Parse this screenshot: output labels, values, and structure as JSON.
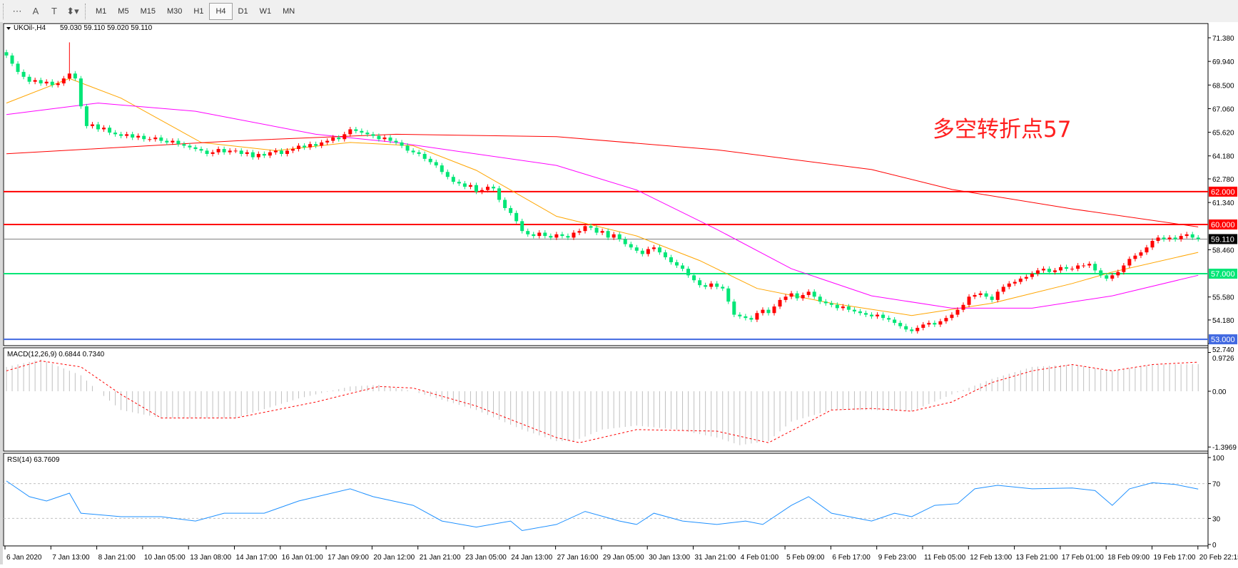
{
  "toolbar": {
    "tools": [
      {
        "name": "period-separator-icon",
        "glyph": "⋯"
      },
      {
        "name": "text-label-icon",
        "glyph": "A"
      },
      {
        "name": "text-box-icon",
        "glyph": "T"
      },
      {
        "name": "arrows-icon",
        "glyph": "⬍▾"
      }
    ],
    "timeframes": [
      "M1",
      "M5",
      "M15",
      "M30",
      "H1",
      "H4",
      "D1",
      "W1",
      "MN"
    ],
    "active_timeframe": "H4"
  },
  "main_pane": {
    "title": "UKOil-,H4",
    "ohlc": "59.030 59.110 59.020 59.110",
    "annotation": "多空转折点57",
    "price_ticks": [
      "71.380",
      "69.940",
      "68.500",
      "67.060",
      "65.620",
      "64.180",
      "62.780",
      "61.340",
      "58.460",
      "55.580",
      "54.180",
      "52.740"
    ],
    "hlines": [
      {
        "price": 62.0,
        "label": "62.000",
        "color": "#ff0000"
      },
      {
        "price": 60.0,
        "label": "60.000",
        "color": "#ff0000"
      },
      {
        "price": 59.11,
        "label": "59.110",
        "color": "#808080",
        "label_bg": "#000000"
      },
      {
        "price": 57.0,
        "label": "57.000",
        "color": "#00e676"
      },
      {
        "price": 53.0,
        "label": "53.000",
        "color": "#4169e1"
      }
    ]
  },
  "chart_data": [
    {
      "type": "candlestick",
      "symbol": "UKOil-",
      "timeframe": "H4",
      "ylim": [
        52.74,
        72.2
      ],
      "up_color": "#ff0000",
      "down_color": "#00e676",
      "closes": [
        70.3,
        69.8,
        69.3,
        69.0,
        68.7,
        68.8,
        68.6,
        68.7,
        68.5,
        68.6,
        68.9,
        69.2,
        68.9,
        67.2,
        66.0,
        66.1,
        65.8,
        65.9,
        65.6,
        65.5,
        65.4,
        65.5,
        65.3,
        65.4,
        65.2,
        65.2,
        65.3,
        65.1,
        65.0,
        65.1,
        64.9,
        64.8,
        64.7,
        64.6,
        64.5,
        64.3,
        64.4,
        64.6,
        64.4,
        64.5,
        64.5,
        64.3,
        64.4,
        64.1,
        64.3,
        64.2,
        64.4,
        64.5,
        64.3,
        64.5,
        64.6,
        64.8,
        64.7,
        64.9,
        64.8,
        65.0,
        65.1,
        65.3,
        65.2,
        65.5,
        65.8,
        65.7,
        65.6,
        65.5,
        65.4,
        65.2,
        65.3,
        65.1,
        65.0,
        64.8,
        64.5,
        64.4,
        64.3,
        64.0,
        63.8,
        63.6,
        63.2,
        62.9,
        62.6,
        62.5,
        62.3,
        62.4,
        62.0,
        62.1,
        62.3,
        62.2,
        61.5,
        61.0,
        60.7,
        60.2,
        59.6,
        59.4,
        59.3,
        59.5,
        59.3,
        59.2,
        59.4,
        59.3,
        59.2,
        59.5,
        59.6,
        59.9,
        59.8,
        59.5,
        59.6,
        59.2,
        59.4,
        59.1,
        58.8,
        58.6,
        58.4,
        58.2,
        58.5,
        58.6,
        58.3,
        58.0,
        57.7,
        57.5,
        57.3,
        56.9,
        56.6,
        56.3,
        56.2,
        56.4,
        56.2,
        56.1,
        55.3,
        54.5,
        54.4,
        54.3,
        54.2,
        54.6,
        54.8,
        54.6,
        55.0,
        55.4,
        55.6,
        55.8,
        55.5,
        55.7,
        55.9,
        55.6,
        55.3,
        55.2,
        55.1,
        54.9,
        55.0,
        54.8,
        54.7,
        54.6,
        54.5,
        54.4,
        54.5,
        54.3,
        54.2,
        54.0,
        53.8,
        53.6,
        53.5,
        53.7,
        53.9,
        54.0,
        53.9,
        54.1,
        54.3,
        54.5,
        54.8,
        55.1,
        55.6,
        55.7,
        55.8,
        55.6,
        55.4,
        55.9,
        56.2,
        56.4,
        56.5,
        56.7,
        56.8,
        57.0,
        57.2,
        57.3,
        57.1,
        57.2,
        57.4,
        57.3,
        57.3,
        57.5,
        57.5,
        57.6,
        57.2,
        56.9,
        56.7,
        56.9,
        57.1,
        57.5,
        57.9,
        58.1,
        58.3,
        58.6,
        59.0,
        59.2,
        59.1,
        59.2,
        59.1,
        59.3,
        59.4,
        59.2,
        59.11
      ],
      "spike": {
        "bar": 11,
        "high": 71.1
      },
      "moving_averages": [
        {
          "color": "#ffa500",
          "points": [
            [
              0,
              67.4
            ],
            [
              11,
              68.9
            ],
            [
              20,
              67.7
            ],
            [
              34,
              65.0
            ],
            [
              47,
              64.5
            ],
            [
              60,
              65.0
            ],
            [
              71,
              64.8
            ],
            [
              82,
              63.3
            ],
            [
              96,
              60.5
            ],
            [
              110,
              59.3
            ],
            [
              121,
              57.8
            ],
            [
              131,
              56.1
            ],
            [
              144,
              55.2
            ],
            [
              158,
              54.45
            ],
            [
              172,
              55.2
            ],
            [
              186,
              56.4
            ],
            [
              193,
              57.1
            ],
            [
              208,
              58.3
            ]
          ]
        },
        {
          "color": "#ff00ff",
          "points": [
            [
              0,
              66.7
            ],
            [
              16,
              67.4
            ],
            [
              33,
              66.9
            ],
            [
              54,
              65.5
            ],
            [
              68,
              65.0
            ],
            [
              96,
              63.6
            ],
            [
              110,
              62.1
            ],
            [
              124,
              59.7
            ],
            [
              137,
              57.3
            ],
            [
              151,
              55.65
            ],
            [
              165,
              54.9
            ],
            [
              179,
              54.9
            ],
            [
              193,
              55.65
            ],
            [
              208,
              56.9
            ]
          ]
        },
        {
          "color": "#ff0000",
          "points": [
            [
              0,
              64.31
            ],
            [
              40,
              65.1
            ],
            [
              68,
              65.5
            ],
            [
              96,
              65.35
            ],
            [
              124,
              64.55
            ],
            [
              151,
              63.35
            ],
            [
              165,
              62.14
            ],
            [
              186,
              60.95
            ],
            [
              208,
              59.85
            ]
          ]
        }
      ],
      "x_tick_labels": [
        "6 Jan 2020",
        "7 Jan 13:00",
        "8 Jan 21:00",
        "10 Jan 05:00",
        "13 Jan 08:00",
        "14 Jan 17:00",
        "16 Jan 01:00",
        "17 Jan 09:00",
        "20 Jan 12:00",
        "21 Jan 21:00",
        "23 Jan 05:00",
        "24 Jan 13:00",
        "27 Jan 16:00",
        "29 Jan 05:00",
        "30 Jan 13:00",
        "31 Jan 21:00",
        "4 Feb 01:00",
        "5 Feb 09:00",
        "6 Feb 17:00",
        "9 Feb 23:00",
        "11 Feb 05:00",
        "12 Feb 13:00",
        "13 Feb 21:00",
        "17 Feb 01:00",
        "18 Feb 09:00",
        "19 Feb 17:00",
        "20 Feb 22:15"
      ]
    },
    {
      "type": "bar+line",
      "title": "MACD(12,26,9) 0.6844 0.7340",
      "ylim": [
        -1.3969,
        0.9726
      ],
      "tick_labels": [
        "0.9726",
        "0.00",
        "-1.3969"
      ],
      "histogram_color": "#c0c0c0",
      "signal_color": "#ff0000",
      "macd": [
        [
          0,
          0.61
        ],
        [
          6,
          0.8
        ],
        [
          13,
          0.4
        ],
        [
          16,
          0
        ],
        [
          20,
          -0.47
        ],
        [
          27,
          -0.67
        ],
        [
          40,
          -0.67
        ],
        [
          51,
          -0.18
        ],
        [
          60,
          0.12
        ],
        [
          65,
          0.16
        ],
        [
          71,
          0
        ],
        [
          82,
          -0.47
        ],
        [
          90,
          -0.96
        ],
        [
          96,
          -1.25
        ],
        [
          99,
          -1.25
        ],
        [
          104,
          -0.96
        ],
        [
          110,
          -0.86
        ],
        [
          117,
          -0.96
        ],
        [
          124,
          -1.16
        ],
        [
          128,
          -1.35
        ],
        [
          133,
          -1.25
        ],
        [
          137,
          -0.76
        ],
        [
          144,
          -0.47
        ],
        [
          151,
          -0.47
        ],
        [
          158,
          -0.5
        ],
        [
          165,
          -0.08
        ],
        [
          172,
          0.31
        ],
        [
          179,
          0.61
        ],
        [
          186,
          0.67
        ],
        [
          193,
          0.51
        ],
        [
          200,
          0.67
        ],
        [
          208,
          0.68
        ]
      ],
      "signal": [
        [
          0,
          0.51
        ],
        [
          6,
          0.76
        ],
        [
          13,
          0.61
        ],
        [
          20,
          -0.08
        ],
        [
          27,
          -0.67
        ],
        [
          40,
          -0.67
        ],
        [
          54,
          -0.27
        ],
        [
          65,
          0.12
        ],
        [
          71,
          0.08
        ],
        [
          82,
          -0.37
        ],
        [
          96,
          -1.16
        ],
        [
          100,
          -1.29
        ],
        [
          110,
          -0.96
        ],
        [
          124,
          -1.0
        ],
        [
          133,
          -1.29
        ],
        [
          144,
          -0.47
        ],
        [
          151,
          -0.43
        ],
        [
          158,
          -0.5
        ],
        [
          165,
          -0.27
        ],
        [
          172,
          0.22
        ],
        [
          179,
          0.51
        ],
        [
          186,
          0.67
        ],
        [
          193,
          0.51
        ],
        [
          200,
          0.67
        ],
        [
          208,
          0.73
        ]
      ]
    },
    {
      "type": "line",
      "title": "RSI(14) 63.7609",
      "ylim": [
        0,
        100
      ],
      "tick_labels": [
        "100",
        "70",
        "30",
        "0"
      ],
      "levels": [
        70,
        30
      ],
      "color": "#1e90ff",
      "values": [
        [
          0,
          73
        ],
        [
          4,
          55
        ],
        [
          7,
          50
        ],
        [
          11,
          59
        ],
        [
          13,
          36
        ],
        [
          20,
          32
        ],
        [
          27,
          32
        ],
        [
          33,
          27
        ],
        [
          38,
          36
        ],
        [
          45,
          36
        ],
        [
          51,
          50
        ],
        [
          60,
          64
        ],
        [
          64,
          55
        ],
        [
          71,
          45
        ],
        [
          76,
          27
        ],
        [
          82,
          20
        ],
        [
          88,
          27
        ],
        [
          90,
          16
        ],
        [
          96,
          23
        ],
        [
          101,
          38
        ],
        [
          107,
          27
        ],
        [
          110,
          23
        ],
        [
          113,
          36
        ],
        [
          118,
          27
        ],
        [
          124,
          23
        ],
        [
          129,
          27
        ],
        [
          132,
          23
        ],
        [
          137,
          45
        ],
        [
          140,
          55
        ],
        [
          144,
          36
        ],
        [
          151,
          27
        ],
        [
          155,
          36
        ],
        [
          158,
          32
        ],
        [
          162,
          45
        ],
        [
          166,
          47
        ],
        [
          169,
          64
        ],
        [
          173,
          68
        ],
        [
          179,
          64
        ],
        [
          186,
          65
        ],
        [
          190,
          62
        ],
        [
          193,
          45
        ],
        [
          196,
          64
        ],
        [
          200,
          71
        ],
        [
          204,
          69
        ],
        [
          208,
          63.76
        ]
      ]
    }
  ]
}
